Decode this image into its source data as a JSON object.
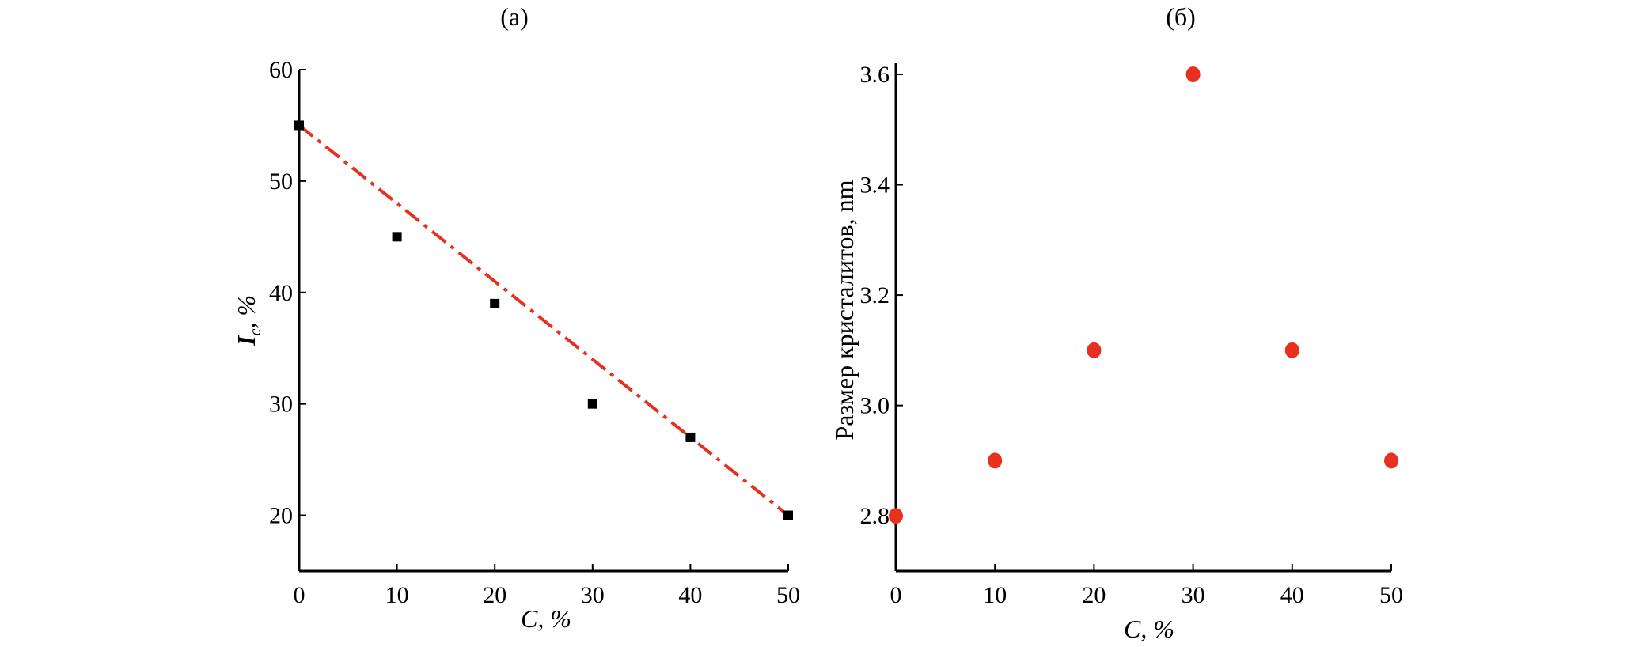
{
  "chart_data": [
    {
      "type": "scatter",
      "title": "(а)",
      "xlabel": "C, %",
      "ylabel_main": "I",
      "ylabel_sub": "c",
      "ylabel_suffix": ", %",
      "xlim": [
        0,
        50
      ],
      "ylim": [
        15,
        60
      ],
      "xticks": [
        0,
        10,
        20,
        30,
        40,
        50
      ],
      "yticks": [
        20,
        30,
        40,
        50,
        60
      ],
      "grid": false,
      "series": [
        {
          "marker": "square",
          "color": "#000000",
          "points": [
            [
              0,
              55
            ],
            [
              10,
              45
            ],
            [
              20,
              39
            ],
            [
              30,
              30
            ],
            [
              40,
              27
            ],
            [
              50,
              20
            ]
          ]
        },
        {
          "kind": "fit-line",
          "style": "dash-dot",
          "color": "#e8301e",
          "points": [
            [
              0,
              55
            ],
            [
              50,
              20
            ]
          ]
        }
      ]
    },
    {
      "type": "scatter",
      "title": "(б)",
      "xlabel": "C, %",
      "ylabel": "Размер кристалитов, nm",
      "xlim": [
        0,
        50
      ],
      "ylim": [
        2.7,
        3.62
      ],
      "xticks": [
        0,
        10,
        20,
        30,
        40,
        50
      ],
      "yticks": [
        2.8,
        3.0,
        3.2,
        3.4,
        3.6
      ],
      "grid": false,
      "series": [
        {
          "marker": "circle",
          "color": "#e8301e",
          "points": [
            [
              0,
              2.8
            ],
            [
              10,
              2.9
            ],
            [
              20,
              3.1
            ],
            [
              30,
              3.6
            ],
            [
              40,
              3.1
            ],
            [
              50,
              2.9
            ]
          ]
        }
      ]
    }
  ]
}
